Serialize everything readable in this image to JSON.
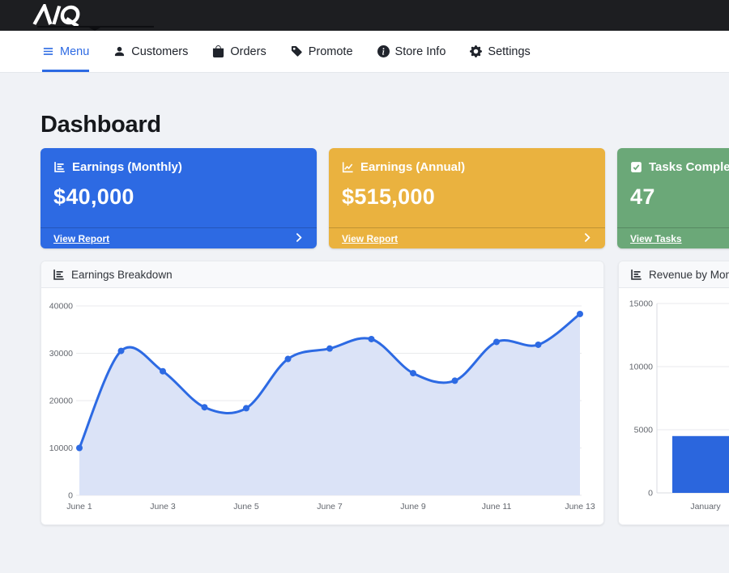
{
  "topbar": {
    "logo_text": "AIQ"
  },
  "nav": {
    "items": [
      {
        "id": "menu",
        "label": "Menu",
        "icon": "hamburger-icon",
        "active": true
      },
      {
        "id": "customers",
        "label": "Customers",
        "icon": "person-icon",
        "active": false
      },
      {
        "id": "orders",
        "label": "Orders",
        "icon": "bag-icon",
        "active": false
      },
      {
        "id": "promote",
        "label": "Promote",
        "icon": "tag-icon",
        "active": false
      },
      {
        "id": "store-info",
        "label": "Store Info",
        "icon": "info-icon",
        "active": false
      },
      {
        "id": "settings",
        "label": "Settings",
        "icon": "gear-icon",
        "active": false
      }
    ]
  },
  "page": {
    "title": "Dashboard"
  },
  "stat_cards": [
    {
      "id": "earnings-monthly",
      "label": "Earnings (Monthly)",
      "value": "$40,000",
      "footer_label": "View Report",
      "icon": "bar-steps-icon",
      "color": "#2d6ae3"
    },
    {
      "id": "earnings-annual",
      "label": "Earnings (Annual)",
      "value": "$515,000",
      "footer_label": "View Report",
      "icon": "line-chart-icon",
      "color": "#eab23f"
    },
    {
      "id": "tasks-completed",
      "label": "Tasks Completed",
      "value": "47",
      "footer_label": "View Tasks",
      "icon": "check-square-icon",
      "color": "#6ba878"
    }
  ],
  "chart_cards": [
    {
      "id": "earnings-breakdown",
      "title": "Earnings Breakdown",
      "icon": "bar-steps-icon"
    },
    {
      "id": "revenue-by-month",
      "title": "Revenue by Month",
      "icon": "bar-steps-icon"
    }
  ],
  "chart_data": [
    {
      "type": "area",
      "title": "Earnings Breakdown",
      "x": [
        "June 1",
        "June 2",
        "June 3",
        "June 4",
        "June 5",
        "June 6",
        "June 7",
        "June 8",
        "June 9",
        "June 10",
        "June 11",
        "June 12",
        "June 13"
      ],
      "values": [
        10000,
        30500,
        26200,
        18600,
        18400,
        28800,
        31000,
        33000,
        25800,
        24200,
        32400,
        31800,
        38300
      ],
      "xtick_labels": [
        "June 1",
        "June 3",
        "June 5",
        "June 7",
        "June 9",
        "June 11",
        "June 13"
      ],
      "ylim": [
        0,
        40000
      ],
      "yticks": [
        0,
        10000,
        20000,
        30000,
        40000
      ],
      "grid": true,
      "line_color": "#2d6ae3",
      "fill_color": "#dbe3f7",
      "point_color": "#2d6ae3"
    },
    {
      "type": "bar",
      "title": "Revenue by Month",
      "categories": [
        "January"
      ],
      "values": [
        4500
      ],
      "ylim": [
        0,
        15000
      ],
      "yticks": [
        0,
        5000,
        10000,
        15000
      ],
      "grid": true,
      "bar_color": "#2b66dd"
    }
  ],
  "colors": {
    "topbar_bg": "#1d1e21",
    "accent_blue": "#2d6ae3",
    "card_yellow": "#eab23f",
    "card_green": "#6ba878",
    "page_bg": "#f0f2f6"
  }
}
